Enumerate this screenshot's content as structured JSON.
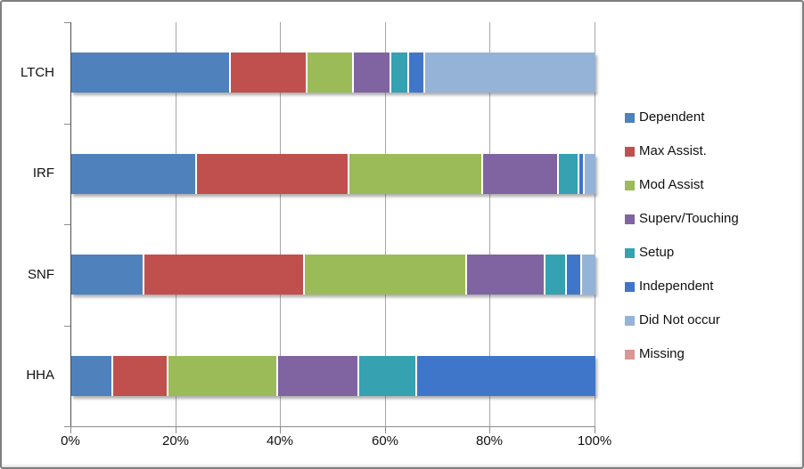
{
  "chart_data": {
    "type": "bar",
    "orientation": "horizontal-stacked",
    "title": "",
    "xlabel": "",
    "ylabel": "",
    "xlim": [
      0,
      100
    ],
    "x_ticks": [
      "0%",
      "20%",
      "40%",
      "60%",
      "80%",
      "100%"
    ],
    "grid": true,
    "grid_color": "#a6a6a6",
    "legend_position": "right",
    "categories": [
      "LTCH",
      "IRF",
      "SNF",
      "HHA"
    ],
    "series": [
      {
        "name": "Dependent",
        "color": "#4F81BD",
        "values": [
          30.5,
          24.0,
          14.0,
          8.0
        ]
      },
      {
        "name": "Max Assist.",
        "color": "#C0504D",
        "values": [
          14.5,
          29.0,
          30.5,
          10.5
        ]
      },
      {
        "name": "Mod Assist",
        "color": "#9BBB59",
        "values": [
          9.0,
          25.5,
          31.0,
          21.0
        ]
      },
      {
        "name": "Superv/Touching",
        "color": "#8064A2",
        "values": [
          7.0,
          14.5,
          15.0,
          15.5
        ]
      },
      {
        "name": "Setup",
        "color": "#35A1B1",
        "values": [
          3.5,
          4.0,
          4.0,
          11.0
        ]
      },
      {
        "name": "Independent",
        "color": "#3F76C9",
        "values": [
          3.0,
          1.0,
          3.0,
          34.0
        ]
      },
      {
        "name": "Did Not occur",
        "color": "#95B3D7",
        "values": [
          32.5,
          2.0,
          2.5,
          0.0
        ]
      },
      {
        "name": "Missing",
        "color": "#D99694",
        "values": [
          0.0,
          0.0,
          0.0,
          0.0
        ]
      }
    ]
  }
}
